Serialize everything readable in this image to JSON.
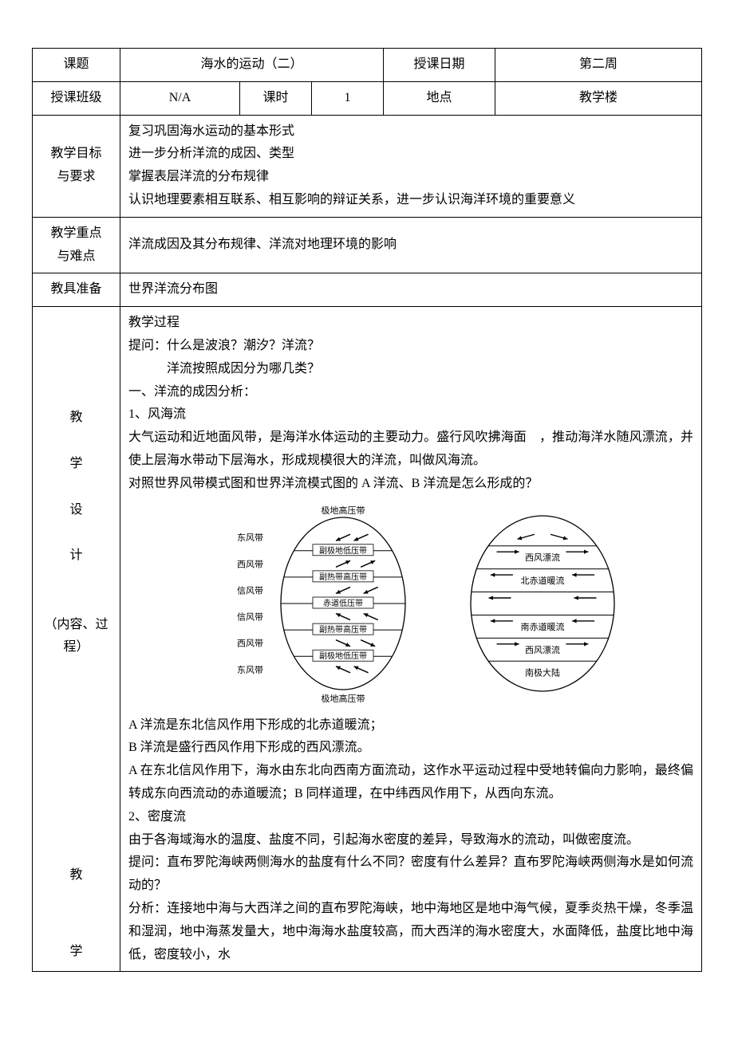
{
  "header": {
    "topic_label": "课题",
    "topic_value": "海水的运动（二）",
    "date_label": "授课日期",
    "date_value": "第二周",
    "class_label": "授课班级",
    "class_value": "N/A",
    "period_label": "课时",
    "period_value": "1",
    "place_label": "地点",
    "place_value": "教学楼"
  },
  "goals": {
    "label": "教学目标\n与要求",
    "text": "复习巩固海水运动的基本形式\n进一步分析洋流的成因、类型\n掌握表层洋流的分布规律\n认识地理要素相互联系、相互影响的辩证关系，进一步认识海洋环境的重要意义"
  },
  "focus": {
    "label": "教学重点\n与难点",
    "text": "洋流成因及其分布规律、洋流对地理环境的影响"
  },
  "tools": {
    "label": "教具准备",
    "text": "世界洋流分布图"
  },
  "design": {
    "label": "教\n\n学\n\n设\n\n计\n\n\n（内容、过程）",
    "process_title": "教学过程",
    "q1a": "提问：什么是波浪？潮汐？洋流？",
    "q1b": "洋流按照成因分为哪几类？",
    "sec1": "一、洋流的成因分析：",
    "sub1": "1、风海流",
    "p1a": "大气运动和近地面风带，是海洋水体运动的主要动力。盛行风吹拂海面　，推动海洋水随风漂流，并使上层海水带动下层海水，形成规模很大的洋流，叫做风海流。",
    "p1b": "对照世界风带模式图和世界洋流模式图的 A 洋流、B 洋流是怎么形成的？",
    "p2a": "A 洋流是东北信风作用下形成的北赤道暖流；",
    "p2b": "B 洋流是盛行西风作用下形成的西风漂流。",
    "p2c": "A 在东北信风作用下，海水由东北向西南方面流动，这作水平运动过程中受地转偏向力影响，最终偏转成东向西流动的赤道暖流；B 同样道理，在中纬西风作用下，从西向东流。",
    "sub2": "2、密度流",
    "p3a": "由于各海域海水的温度、盐度不同，引起海水密度的差异，导致海水的流动，叫做密度流。",
    "p3b": "提问：直布罗陀海峡两侧海水的盐度有什么不同？密度有什么差异？直布罗陀海峡两侧海水是如何流动的？",
    "p3c": "分析：连接地中海与大西洋之间的直布罗陀海峡，地中海地区是地中海气候，夏季炎热干燥，冬季温和湿润，地中海蒸发量大，地中海海水盐度较高，而大西洋的海水密度大，水面降低，盐度比地中海低，密度较小，水"
  },
  "design2_label": "教\n\n学",
  "diagram_left": {
    "top": "极地高压带",
    "bottom": "极地高压带",
    "rows": [
      {
        "left": "东风带",
        "band": "副极地低压带",
        "dir": "sw"
      },
      {
        "left": "西风带",
        "band": "副热带高压带",
        "dir": "ne"
      },
      {
        "left": "信风带",
        "band": "赤道低压带",
        "dir": "sw"
      },
      {
        "left": "信风带",
        "band": "副热带高压带",
        "dir": "nw"
      },
      {
        "left": "西风带",
        "band": "副极地低压带",
        "dir": "se"
      },
      {
        "left": "东风带",
        "band": "",
        "dir": "nw"
      }
    ]
  },
  "diagram_right": {
    "rows": [
      {
        "label": "",
        "arrows": "diverge"
      },
      {
        "label": "西风漂流",
        "arrows": "right"
      },
      {
        "label": "北赤道暖流",
        "arrows": "left"
      },
      {
        "label": "",
        "arrows": "left"
      },
      {
        "label": "南赤道暖流",
        "arrows": "left"
      },
      {
        "label": "西风漂流",
        "arrows": "right"
      },
      {
        "label": "南极大陆",
        "arrows": ""
      }
    ]
  },
  "colors": {
    "border": "#000000",
    "text": "#000000",
    "bg": "#ffffff"
  }
}
